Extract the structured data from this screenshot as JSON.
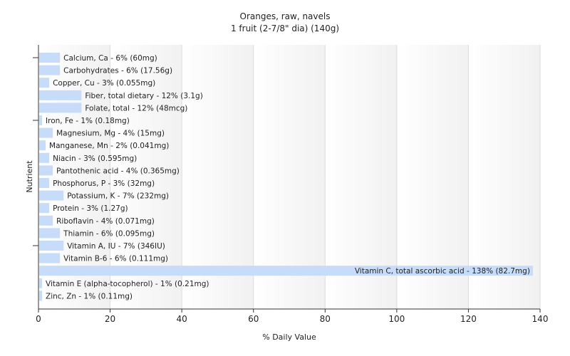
{
  "chart_data": {
    "type": "bar",
    "orientation": "horizontal",
    "title": "Oranges, raw, navels",
    "subtitle": "1 fruit (2-7/8\" dia) (140g)",
    "xlabel": "% Daily Value",
    "ylabel": "Nutrient",
    "xlim": [
      0,
      140
    ],
    "xticks": [
      "0",
      "20",
      "40",
      "60",
      "80",
      "100",
      "120",
      "140"
    ],
    "grid": true,
    "bar_color": "#c6dcf9",
    "categories": [
      "Calcium, Ca",
      "Carbohydrates",
      "Copper, Cu",
      "Fiber, total dietary",
      "Folate, total",
      "Iron, Fe",
      "Magnesium, Mg",
      "Manganese, Mn",
      "Niacin",
      "Pantothenic acid",
      "Phosphorus, P",
      "Potassium, K",
      "Protein",
      "Riboflavin",
      "Thiamin",
      "Vitamin A, IU",
      "Vitamin B-6",
      "Vitamin C, total ascorbic acid",
      "Vitamin E (alpha-tocopherol)",
      "Zinc, Zn"
    ],
    "values": [
      6,
      6,
      3,
      12,
      12,
      1,
      4,
      2,
      3,
      4,
      3,
      7,
      3,
      4,
      6,
      7,
      6,
      138,
      1,
      1
    ],
    "labels": [
      "Calcium, Ca - 6% (60mg)",
      "Carbohydrates - 6% (17.56g)",
      "Copper, Cu - 3% (0.055mg)",
      "Fiber, total dietary - 12% (3.1g)",
      "Folate, total - 12% (48mcg)",
      "Iron, Fe - 1% (0.18mg)",
      "Magnesium, Mg - 4% (15mg)",
      "Manganese, Mn - 2% (0.041mg)",
      "Niacin - 3% (0.595mg)",
      "Pantothenic acid - 4% (0.365mg)",
      "Phosphorus, P - 3% (32mg)",
      "Potassium, K - 7% (232mg)",
      "Protein - 3% (1.27g)",
      "Riboflavin - 4% (0.071mg)",
      "Thiamin - 6% (0.095mg)",
      "Vitamin A, IU - 7% (346IU)",
      "Vitamin B-6 - 6% (0.111mg)",
      "Vitamin C, total ascorbic acid - 138% (82.7mg)",
      "Vitamin E (alpha-tocopherol) - 1% (0.21mg)",
      "Zinc, Zn - 1% (0.11mg)"
    ]
  }
}
